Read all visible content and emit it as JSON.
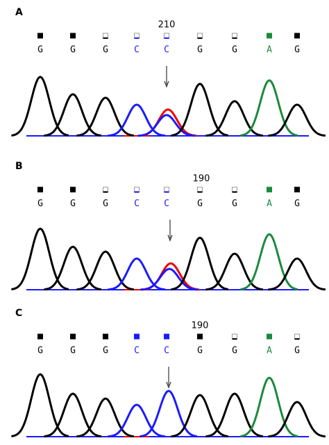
{
  "panels": [
    {
      "label": "A",
      "position": 210,
      "bases": [
        "G",
        "G",
        "G",
        "C",
        "C",
        "G",
        "G",
        "A",
        "G"
      ]
    },
    {
      "label": "B",
      "position": 190,
      "bases": [
        "G",
        "G",
        "G",
        "C",
        "C",
        "G",
        "G",
        "A",
        "G"
      ]
    },
    {
      "label": "C",
      "position": 190,
      "bases": [
        "G",
        "G",
        "G",
        "C",
        "C",
        "G",
        "G",
        "A",
        "G"
      ]
    }
  ]
}
